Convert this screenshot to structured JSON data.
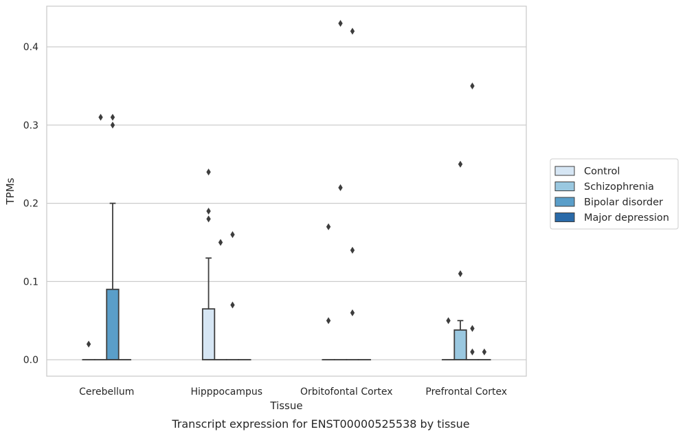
{
  "chart_data": {
    "type": "box",
    "caption": "Transcript expression for ENST00000525538 by tissue",
    "xlabel": "Tissue",
    "ylabel": "TPMs",
    "ylim": [
      -0.021,
      0.452
    ],
    "yticks": [
      0.0,
      0.1,
      0.2,
      0.3,
      0.4
    ],
    "ytick_labels": [
      "0.0",
      "0.1",
      "0.2",
      "0.3",
      "0.4"
    ],
    "grid": "horizontal",
    "legend_position": "right",
    "categories": [
      "Cerebellum",
      "Hipppocampus",
      "Orbitofontal Cortex",
      "Prefrontal Cortex"
    ],
    "series": [
      {
        "name": "Control",
        "color": "#d6e6f4",
        "boxes": [
          {
            "q1": 0,
            "median": 0,
            "q3": 0,
            "whisker_low": 0,
            "whisker_high": 0,
            "outliers": [
              0.02
            ]
          },
          {
            "q1": 0,
            "median": 0,
            "q3": 0.065,
            "whisker_low": 0,
            "whisker_high": 0.13,
            "outliers": [
              0.24,
              0.19,
              0.18
            ]
          },
          {
            "q1": 0,
            "median": 0,
            "q3": 0,
            "whisker_low": 0,
            "whisker_high": 0,
            "outliers": [
              0.17,
              0.05
            ]
          },
          {
            "q1": 0,
            "median": 0,
            "q3": 0,
            "whisker_low": 0,
            "whisker_high": 0,
            "outliers": [
              0.05
            ]
          }
        ]
      },
      {
        "name": "Schizophrenia",
        "color": "#9ac8e0",
        "boxes": [
          {
            "q1": 0,
            "median": 0,
            "q3": 0,
            "whisker_low": 0,
            "whisker_high": 0,
            "outliers": [
              0.31
            ]
          },
          {
            "q1": 0,
            "median": 0,
            "q3": 0,
            "whisker_low": 0,
            "whisker_high": 0,
            "outliers": [
              0.15
            ]
          },
          {
            "q1": 0,
            "median": 0,
            "q3": 0,
            "whisker_low": 0,
            "whisker_high": 0,
            "outliers": [
              0.43,
              0.22
            ]
          },
          {
            "q1": 0,
            "median": 0,
            "q3": 0.038,
            "whisker_low": 0,
            "whisker_high": 0.05,
            "outliers": [
              0.25,
              0.11
            ]
          }
        ]
      },
      {
        "name": "Bipolar disorder",
        "color": "#5a9ec9",
        "boxes": [
          {
            "q1": 0,
            "median": 0,
            "q3": 0.09,
            "whisker_low": 0,
            "whisker_high": 0.2,
            "outliers": [
              0.31,
              0.3
            ]
          },
          {
            "q1": 0,
            "median": 0,
            "q3": 0,
            "whisker_low": 0,
            "whisker_high": 0,
            "outliers": [
              0.07,
              0.16
            ]
          },
          {
            "q1": 0,
            "median": 0,
            "q3": 0,
            "whisker_low": 0,
            "whisker_high": 0,
            "outliers": [
              0.42,
              0.14,
              0.06
            ]
          },
          {
            "q1": 0,
            "median": 0,
            "q3": 0,
            "whisker_low": 0,
            "whisker_high": 0,
            "outliers": [
              0.35,
              0.04,
              0.01
            ]
          }
        ]
      },
      {
        "name": "Major depression",
        "color": "#2a6aa8",
        "boxes": [
          {
            "q1": 0,
            "median": 0,
            "q3": 0,
            "whisker_low": 0,
            "whisker_high": 0,
            "outliers": []
          },
          {
            "q1": 0,
            "median": 0,
            "q3": 0,
            "whisker_low": 0,
            "whisker_high": 0,
            "outliers": []
          },
          {
            "q1": 0,
            "median": 0,
            "q3": 0,
            "whisker_low": 0,
            "whisker_high": 0,
            "outliers": []
          },
          {
            "q1": 0,
            "median": 0,
            "q3": 0,
            "whisker_low": 0,
            "whisker_high": 0,
            "outliers": [
              0.01
            ]
          }
        ]
      }
    ]
  }
}
